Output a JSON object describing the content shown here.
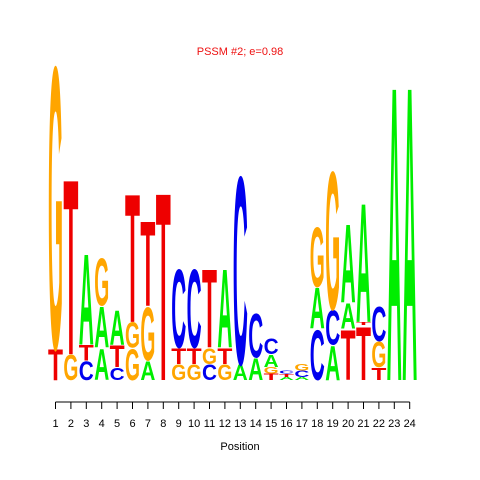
{
  "chart_data": {
    "type": "sequence-logo",
    "title": "PSSM #2; e=0.98",
    "xlabel": "Position",
    "ylabel": "",
    "x_ticks": [
      "1",
      "2",
      "3",
      "4",
      "5",
      "6",
      "7",
      "8",
      "9",
      "10",
      "11",
      "12",
      "13",
      "14",
      "15",
      "16",
      "17",
      "18",
      "19",
      "20",
      "21",
      "22",
      "23",
      "24"
    ],
    "ylim": [
      0,
      1
    ],
    "colors": {
      "A": "#00ee00",
      "C": "#0000ee",
      "G": "#ffa500",
      "T": "#ee0000"
    },
    "positions": [
      {
        "position": 1,
        "letters": [
          {
            "base": "T",
            "height": 0.1
          },
          {
            "base": "G",
            "height": 0.9
          }
        ]
      },
      {
        "position": 2,
        "letters": [
          {
            "base": "G",
            "height": 0.08
          },
          {
            "base": "T",
            "height": 0.56
          }
        ]
      },
      {
        "position": 3,
        "letters": [
          {
            "base": "C",
            "height": 0.06
          },
          {
            "base": "T",
            "height": 0.05
          },
          {
            "base": "A",
            "height": 0.29
          }
        ]
      },
      {
        "position": 4,
        "letters": [
          {
            "base": "A",
            "height": 0.1
          },
          {
            "base": "A",
            "height": 0.13
          },
          {
            "base": "G",
            "height": 0.15
          }
        ]
      },
      {
        "position": 5,
        "letters": [
          {
            "base": "C",
            "height": 0.04
          },
          {
            "base": "T",
            "height": 0.07
          },
          {
            "base": "A",
            "height": 0.11
          }
        ]
      },
      {
        "position": 6,
        "letters": [
          {
            "base": "G",
            "height": 0.1
          },
          {
            "base": "G",
            "height": 0.08
          },
          {
            "base": "T",
            "height": 0.41
          }
        ]
      },
      {
        "position": 7,
        "letters": [
          {
            "base": "A",
            "height": 0.06
          },
          {
            "base": "G",
            "height": 0.17
          },
          {
            "base": "T",
            "height": 0.27
          }
        ]
      },
      {
        "position": 8,
        "letters": [
          {
            "base": "T",
            "height": 0.6
          }
        ]
      },
      {
        "position": 9,
        "letters": [
          {
            "base": "G",
            "height": 0.05
          },
          {
            "base": "T",
            "height": 0.05
          },
          {
            "base": "C",
            "height": 0.25
          }
        ]
      },
      {
        "position": 10,
        "letters": [
          {
            "base": "G",
            "height": 0.05
          },
          {
            "base": "T",
            "height": 0.05
          },
          {
            "base": "C",
            "height": 0.25
          }
        ]
      },
      {
        "position": 11,
        "letters": [
          {
            "base": "C",
            "height": 0.05
          },
          {
            "base": "G",
            "height": 0.05
          },
          {
            "base": "T",
            "height": 0.25
          }
        ]
      },
      {
        "position": 12,
        "letters": [
          {
            "base": "G",
            "height": 0.05
          },
          {
            "base": "T",
            "height": 0.05
          },
          {
            "base": "A",
            "height": 0.25
          }
        ]
      },
      {
        "position": 13,
        "letters": [
          {
            "base": "A",
            "height": 0.05
          },
          {
            "base": "C",
            "height": 0.6
          }
        ]
      },
      {
        "position": 14,
        "letters": [
          {
            "base": "A",
            "height": 0.07
          },
          {
            "base": "C",
            "height": 0.14
          }
        ]
      },
      {
        "position": 15,
        "letters": [
          {
            "base": "T",
            "height": 0.02
          },
          {
            "base": "G",
            "height": 0.02
          },
          {
            "base": "A",
            "height": 0.04
          },
          {
            "base": "C",
            "height": 0.05
          }
        ]
      },
      {
        "position": 16,
        "letters": [
          {
            "base": "A",
            "height": 0.01
          },
          {
            "base": "T",
            "height": 0.01
          },
          {
            "base": "C",
            "height": 0.01
          }
        ]
      },
      {
        "position": 17,
        "letters": [
          {
            "base": "A",
            "height": 0.01
          },
          {
            "base": "C",
            "height": 0.02
          },
          {
            "base": "G",
            "height": 0.02
          }
        ]
      },
      {
        "position": 18,
        "letters": [
          {
            "base": "C",
            "height": 0.16
          },
          {
            "base": "A",
            "height": 0.13
          },
          {
            "base": "G",
            "height": 0.19
          }
        ]
      },
      {
        "position": 19,
        "letters": [
          {
            "base": "A",
            "height": 0.11
          },
          {
            "base": "C",
            "height": 0.11
          },
          {
            "base": "G",
            "height": 0.44
          }
        ]
      },
      {
        "position": 20,
        "letters": [
          {
            "base": "T",
            "height": 0.16
          },
          {
            "base": "A",
            "height": 0.08
          },
          {
            "base": "A",
            "height": 0.25
          }
        ]
      },
      {
        "position": 21,
        "letters": [
          {
            "base": "T",
            "height": 0.17
          },
          {
            "base": "T",
            "height": 0.01
          },
          {
            "base": "A",
            "height": 0.38
          }
        ]
      },
      {
        "position": 22,
        "letters": [
          {
            "base": "T",
            "height": 0.04
          },
          {
            "base": "G",
            "height": 0.08
          },
          {
            "base": "C",
            "height": 0.11
          }
        ]
      },
      {
        "position": 23,
        "letters": [
          {
            "base": "A",
            "height": 0.94
          }
        ]
      },
      {
        "position": 24,
        "letters": [
          {
            "base": "A",
            "height": 0.94
          }
        ]
      }
    ]
  }
}
